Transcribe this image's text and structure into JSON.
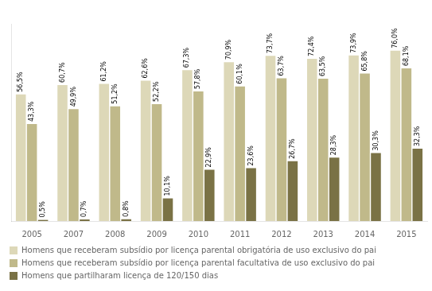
{
  "chart_data": {
    "type": "bar",
    "categories": [
      "2005",
      "2007",
      "2008",
      "2009",
      "2010",
      "2011",
      "2012",
      "2013",
      "2014",
      "2015"
    ],
    "series": [
      {
        "name": "Homens que receberam subsídio por licença parental obrigatória de uso exclusivo do pai",
        "color": "#ddd8b8",
        "values": [
          56.5,
          60.7,
          61.2,
          62.6,
          67.3,
          70.9,
          73.7,
          72.4,
          73.9,
          76.0
        ],
        "value_labels": [
          "56,5%",
          "60,7%",
          "61,2%",
          "62,6%",
          "67,3%",
          "70,9%",
          "73,7%",
          "72,4%",
          "73,9%",
          "76,0%"
        ]
      },
      {
        "name": "Homens que receberam subsídio por licença parental facultativa de uso exclusivo do pai",
        "color": "#c0b98a",
        "values": [
          43.3,
          49.9,
          51.2,
          52.2,
          57.8,
          60.1,
          63.7,
          63.5,
          65.8,
          68.1
        ],
        "value_labels": [
          "43,3%",
          "49,9%",
          "51,2%",
          "52,2%",
          "57,8%",
          "60,1%",
          "63,7%",
          "63,5%",
          "65,8%",
          "68,1%"
        ]
      },
      {
        "name": "Homens que partilharam licença de 120/150 dias",
        "color": "#7a7245",
        "values": [
          0.5,
          0.7,
          0.8,
          10.1,
          22.9,
          23.6,
          26.7,
          28.3,
          30.3,
          32.3
        ],
        "value_labels": [
          "0,5%",
          "0,7%",
          "0,8%",
          "10,1%",
          "22,9%",
          "23,6%",
          "26,7%",
          "28,3%",
          "30,3%",
          "32,3%"
        ]
      }
    ],
    "ylim": [
      0,
      88
    ],
    "yticks": [],
    "grid": false,
    "legend": "bottom",
    "data_labels": true,
    "tick_labels": "x"
  }
}
